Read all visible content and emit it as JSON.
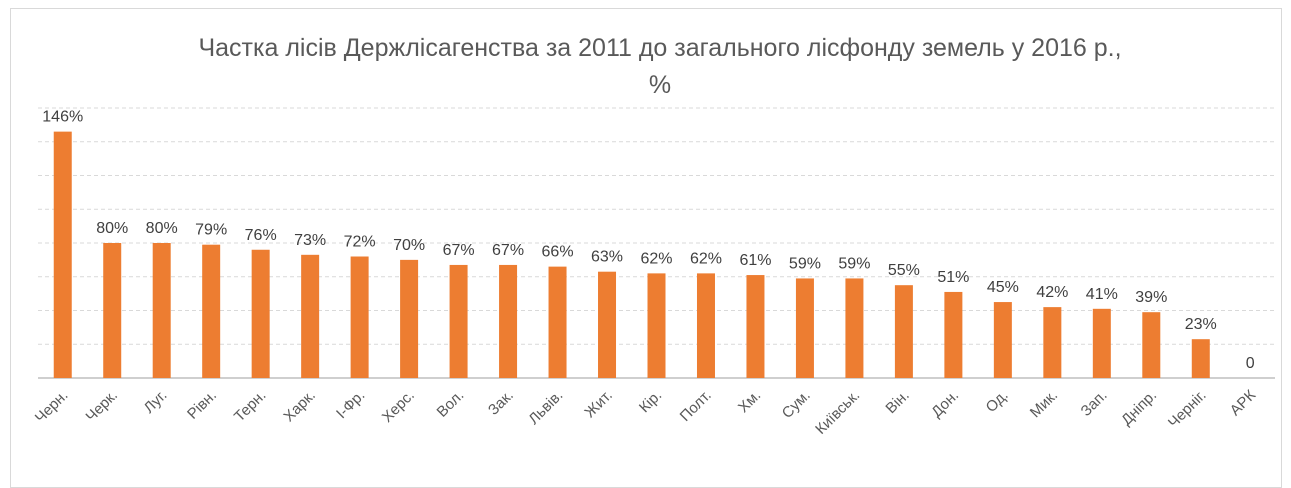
{
  "chart_data": {
    "type": "bar",
    "title": "Частка лісів Держлісагенства за 2011 до загального лісфонду земель у 2016 р., %",
    "categories": [
      "Черн.",
      "Черк.",
      "Луг.",
      "Рівн.",
      "Терн.",
      "Харк.",
      "І-Фр.",
      "Херс.",
      "Вол.",
      "Зак.",
      "Львів.",
      "Жит.",
      "Кір.",
      "Полт.",
      "Хм.",
      "Сум.",
      "Київськ.",
      "Він.",
      "Дон.",
      "Од.",
      "Мик.",
      "Зап.",
      "Дніпр.",
      "Черніг.",
      "АРК"
    ],
    "values": [
      146,
      80,
      80,
      79,
      76,
      73,
      72,
      70,
      67,
      67,
      66,
      63,
      62,
      62,
      61,
      59,
      59,
      55,
      51,
      45,
      42,
      41,
      39,
      23,
      0
    ],
    "value_labels": [
      "146%",
      "80%",
      "80%",
      "79%",
      "76%",
      "73%",
      "72%",
      "70%",
      "67%",
      "67%",
      "66%",
      "63%",
      "62%",
      "62%",
      "61%",
      "59%",
      "59%",
      "55%",
      "51%",
      "45%",
      "42%",
      "41%",
      "39%",
      "23%",
      "0"
    ],
    "color": "#ed7d31",
    "ylim": [
      0,
      160
    ],
    "yticks": [
      0,
      20,
      40,
      60,
      80,
      100,
      120,
      140,
      160
    ],
    "grid": true
  }
}
